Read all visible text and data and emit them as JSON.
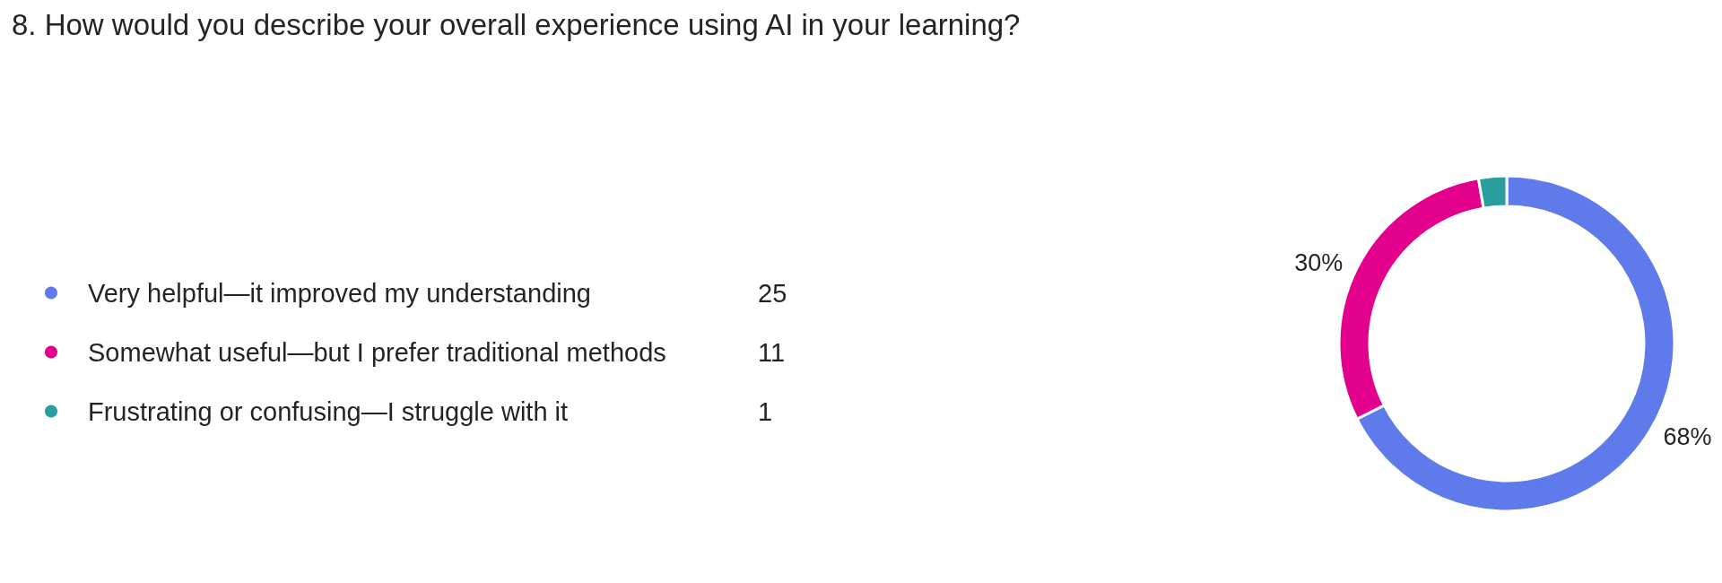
{
  "chart_data": {
    "type": "donut",
    "title": "8. How would you describe your overall experience using AI in your learning?",
    "categories": [
      "Very helpful—it improved my understanding",
      "Somewhat useful—but I prefer traditional methods",
      "Frustrating or confusing—I struggle with it"
    ],
    "values": [
      25,
      11,
      1
    ],
    "colors": [
      "#5f7aeb",
      "#e3008c",
      "#2a9d9f"
    ],
    "value_labels": [
      "25",
      "11",
      "1"
    ],
    "annotations": [
      "68%",
      "30%"
    ],
    "legend": "left"
  }
}
